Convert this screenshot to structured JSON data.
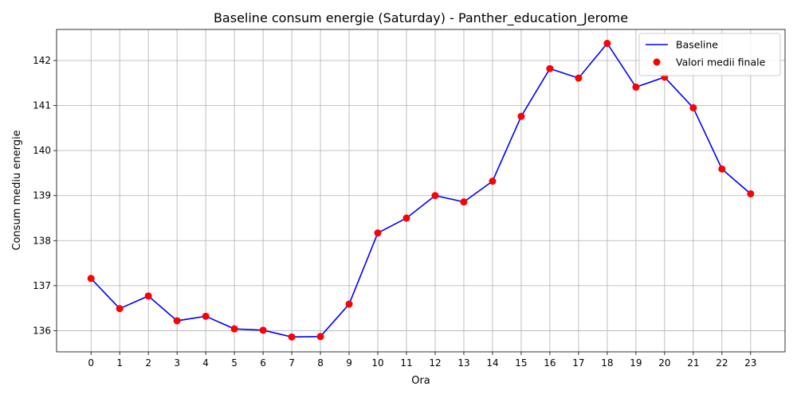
{
  "chart_data": {
    "type": "line",
    "title": "Baseline consum energie (Saturday) - Panther_education_Jerome",
    "xlabel": "Ora",
    "ylabel": "Consum mediu energie",
    "x": [
      0,
      1,
      2,
      3,
      4,
      5,
      6,
      7,
      8,
      9,
      10,
      11,
      12,
      13,
      14,
      15,
      16,
      17,
      18,
      19,
      20,
      21,
      22,
      23
    ],
    "x_tick_labels": [
      "0",
      "1",
      "2",
      "3",
      "4",
      "5",
      "6",
      "7",
      "8",
      "9",
      "10",
      "11",
      "12",
      "13",
      "14",
      "15",
      "16",
      "17",
      "18",
      "19",
      "20",
      "21",
      "22",
      "23"
    ],
    "y_ticks": [
      136,
      137,
      138,
      139,
      140,
      141,
      142
    ],
    "y_tick_labels": [
      "136",
      "137",
      "138",
      "139",
      "140",
      "141",
      "142"
    ],
    "xlim": [
      -1.2,
      24.2
    ],
    "ylim": [
      135.53,
      142.69
    ],
    "grid": true,
    "legend_position": "upper-right",
    "series": [
      {
        "name": "Baseline",
        "kind": "line",
        "color": "#0000ff",
        "values": [
          137.16,
          136.49,
          136.77,
          136.22,
          136.32,
          136.04,
          136.01,
          135.86,
          135.87,
          136.59,
          138.17,
          138.5,
          139.0,
          138.86,
          139.32,
          140.76,
          141.82,
          141.61,
          142.38,
          141.41,
          141.63,
          140.95,
          139.59,
          139.04
        ]
      },
      {
        "name": "Valori medii finale",
        "kind": "scatter",
        "color": "#ff0000",
        "values": [
          137.16,
          136.49,
          136.77,
          136.22,
          136.32,
          136.04,
          136.01,
          135.86,
          135.87,
          136.59,
          138.17,
          138.5,
          139.0,
          138.86,
          139.32,
          140.76,
          141.82,
          141.61,
          142.38,
          141.41,
          141.63,
          140.95,
          139.59,
          139.04
        ]
      }
    ]
  }
}
